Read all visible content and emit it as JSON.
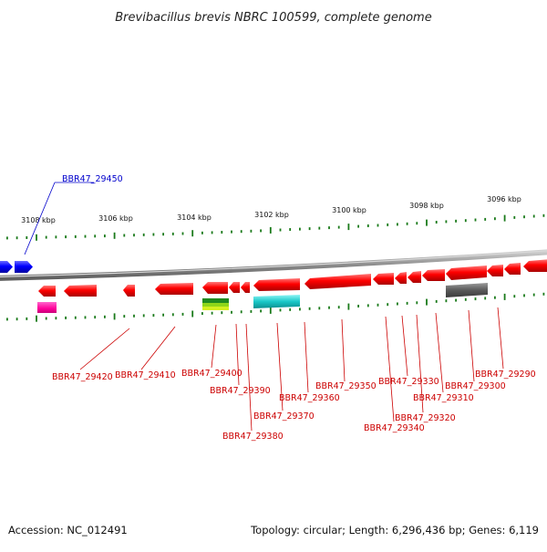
{
  "title": "Brevibacillus brevis NBRC 100599, complete genome",
  "accession": "Accession: NC_012491",
  "summary": "Topology: circular; Length: 6,296,436 bp; Genes: 6,119",
  "colors": {
    "forward_gene": "#0000ff",
    "reverse_gene": "#ff0000",
    "label_forward": "#0000cc",
    "label_reverse": "#cc0000",
    "backbone": "#8c8c8c",
    "tick": "#1a7a1a"
  },
  "axis_labels": [
    "3108 kbp",
    "3106 kbp",
    "3104 kbp",
    "3102 kbp",
    "3100 kbp",
    "3098 kbp",
    "3096 kbp"
  ],
  "gene_labels_forward": [
    "BBR47_29450"
  ],
  "gene_labels_reverse": [
    "BBR47_29420",
    "BBR47_29410",
    "BBR47_29400",
    "BBR47_29390",
    "BBR47_29380",
    "BBR47_29370",
    "BBR47_29360",
    "BBR47_29350",
    "BBR47_29340",
    "BBR47_29330",
    "BBR47_29320",
    "BBR47_29310",
    "BBR47_29300",
    "BBR47_29290"
  ]
}
